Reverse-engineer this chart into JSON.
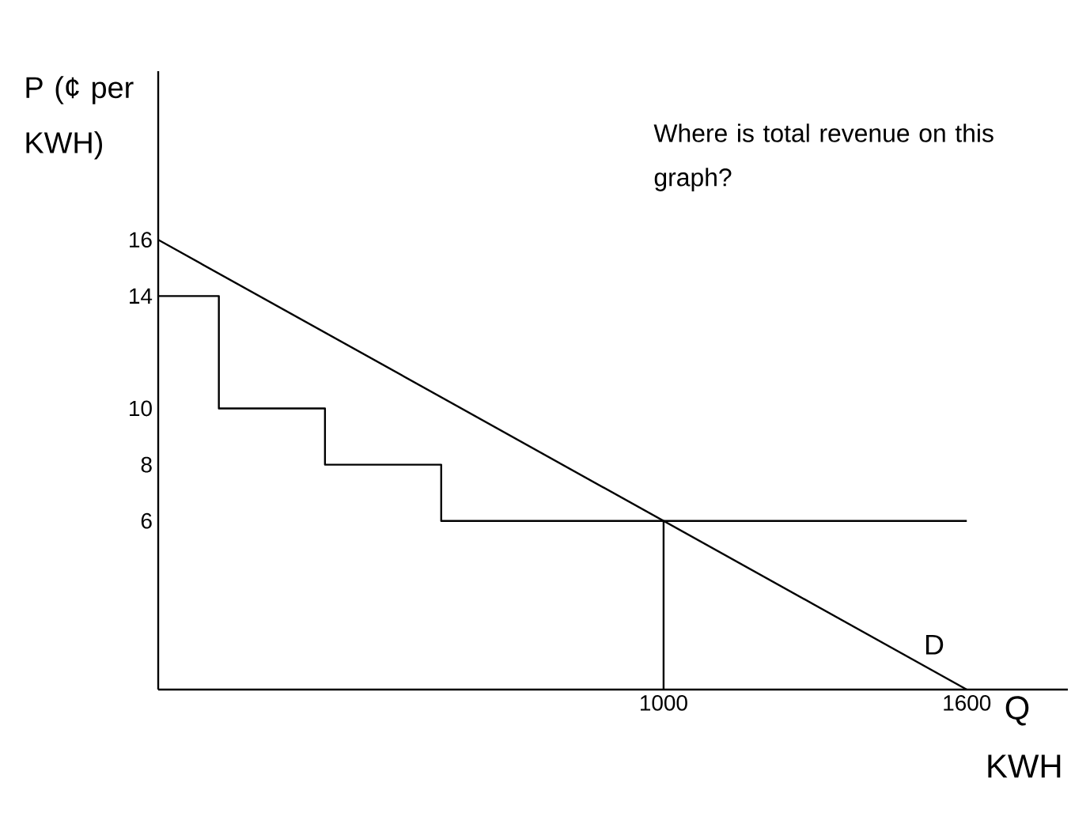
{
  "chart_data": {
    "type": "line",
    "ylabel": "P (¢ per KWH)",
    "xlabel": "Q KWH",
    "annotations": [
      "Where is total revenue on this graph?"
    ],
    "xlim": [
      0,
      1800
    ],
    "ylim": [
      0,
      22
    ],
    "xticks": [
      1000,
      1600
    ],
    "yticks": [
      6,
      8,
      10,
      14,
      16
    ],
    "series": [
      {
        "name": "D",
        "color": "#000000",
        "x": [
          0,
          1600
        ],
        "values": [
          16,
          0
        ]
      },
      {
        "color": "#000000",
        "x": [
          0,
          120,
          120,
          330,
          330,
          560,
          560,
          1600
        ],
        "values": [
          14,
          14,
          10,
          10,
          8,
          8,
          6,
          6
        ]
      },
      {
        "color": "#000000",
        "x": [
          1000,
          1000
        ],
        "values": [
          6,
          0
        ]
      }
    ],
    "grid": false,
    "legend": false,
    "marker": "none",
    "line_style": "solid"
  }
}
